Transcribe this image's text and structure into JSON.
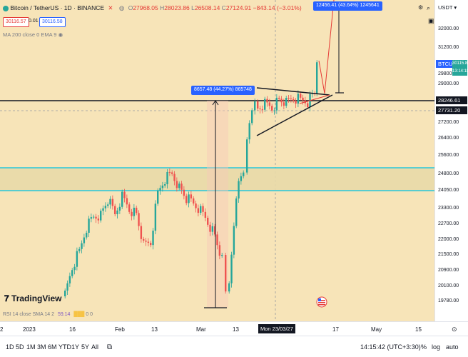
{
  "header": {
    "title": "Bitcoin / TetherUS · 1D · BINANCE",
    "open_label": "O",
    "open": "27968.05",
    "high_label": "H",
    "high": "28023.86",
    "low_label": "L",
    "low": "26508.14",
    "close_label": "C",
    "close": "27124.91",
    "change": "−843.14 (−3.01%)",
    "sell_price": "30116.57",
    "spread": "0.01",
    "buy_price": "30116.58",
    "indicator": "MA 200 close 0 EMA 9",
    "rsi": "RSI 14 close SMA 14 2",
    "rsi_value": "59.14",
    "rsi_extra": "0  0"
  },
  "currency": "USDT",
  "price_scale": [
    "32000.00",
    "31200.00",
    "29800.00",
    "29000.00",
    "27200.00",
    "26400.00",
    "25600.00",
    "24800.00",
    "24050.00",
    "23300.00",
    "22700.00",
    "22000.00",
    "21500.00",
    "20900.00",
    "20100.00",
    "19780.00"
  ],
  "price_labels": {
    "symbol": "BTCUSDT",
    "symbol_price": "30115.86",
    "countdown": "13:14:18",
    "line1": "28246.61",
    "line2": "27731.20"
  },
  "measures": {
    "upper": "12456.41 (43.64%) 1245641",
    "lower": "8657.48 (44.27%) 865748"
  },
  "time_axis": [
    "2",
    "2023",
    "16",
    "Feb",
    "13",
    "Mar",
    "13",
    "Mon 23/03/27",
    "17",
    "May",
    "15"
  ],
  "bottom": {
    "timeframes": [
      "1D",
      "5D",
      "1M",
      "3M",
      "6M",
      "YTD",
      "1Y",
      "5Y",
      "All"
    ],
    "clock": "14:15:42 (UTC+3:30)",
    "percent": "%",
    "log": "log",
    "auto": "auto"
  },
  "brand": "TradingView",
  "colors": {
    "bull": "#26a69a",
    "bear": "#ef5350",
    "cyan": "#26c6da",
    "blue": "#2962ff",
    "bg": "#f7e4b8"
  }
}
